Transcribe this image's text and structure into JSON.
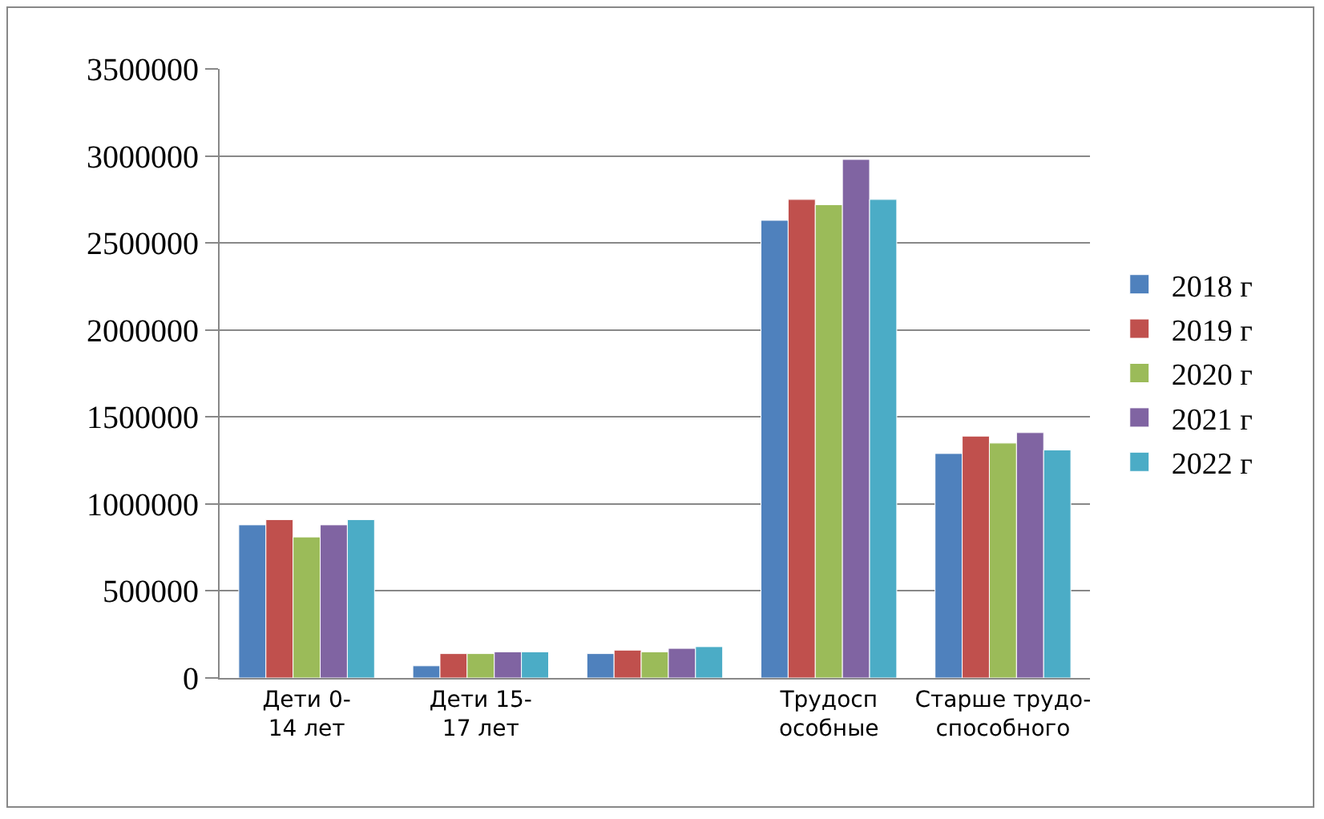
{
  "chart_data": {
    "type": "bar",
    "categories": [
      "Дети 0-\n14 лет",
      "Дети 15-\n17 лет",
      null,
      "Трудосп\nособные",
      "Старше трудо-\nспособного"
    ],
    "series": [
      {
        "name": "2018 г",
        "color": "#4f81bd",
        "values": [
          880000,
          70000,
          140000,
          2630000,
          1290000
        ]
      },
      {
        "name": "2019 г",
        "color": "#c0504d",
        "values": [
          910000,
          140000,
          160000,
          2750000,
          1390000
        ]
      },
      {
        "name": "2020 г",
        "color": "#9bbb59",
        "values": [
          810000,
          140000,
          150000,
          2720000,
          1350000
        ]
      },
      {
        "name": "2021 г",
        "color": "#8064a2",
        "values": [
          880000,
          150000,
          170000,
          2980000,
          1410000
        ]
      },
      {
        "name": "2022 г",
        "color": "#4bacc6",
        "values": [
          910000,
          150000,
          180000,
          2750000,
          1310000
        ]
      }
    ],
    "ylim": [
      0,
      3500000
    ],
    "yticks": [
      0,
      500000,
      1000000,
      1500000,
      2000000,
      2500000,
      3000000,
      3500000
    ],
    "grid": "y",
    "legend": "right"
  }
}
